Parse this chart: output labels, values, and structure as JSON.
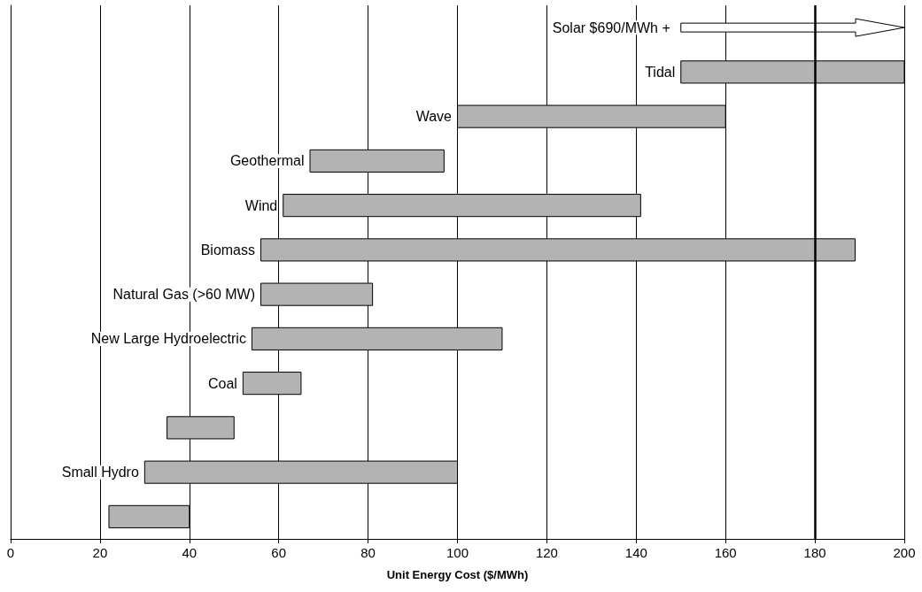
{
  "chart_data": {
    "type": "bar",
    "orientation": "horizontal",
    "xlabel": "Unit Energy Cost ($/MWh)",
    "categories": [
      null,
      "Tidal",
      "Wave",
      "Geothermal",
      "Wind",
      "Biomass",
      "Natural Gas (>60 MW)",
      "New Large Hydroelectric",
      "Coal",
      null,
      "Small Hydro",
      null
    ],
    "base": [
      null,
      150,
      100,
      67,
      61,
      56,
      56,
      54,
      52,
      35,
      30,
      22
    ],
    "values": [
      null,
      50,
      60,
      30,
      80,
      133,
      25,
      56,
      13,
      15,
      70,
      18
    ],
    "color": "#b3b3b3",
    "xlim": [
      0,
      200
    ],
    "xticks": [
      0,
      20,
      40,
      60,
      80,
      100,
      120,
      140,
      160,
      180,
      200
    ],
    "grid": "x",
    "ref_lines": [
      {
        "axis": "x",
        "value": 180,
        "color": "#000000"
      }
    ],
    "annotations": [
      "Solar $690/MWh +"
    ]
  }
}
